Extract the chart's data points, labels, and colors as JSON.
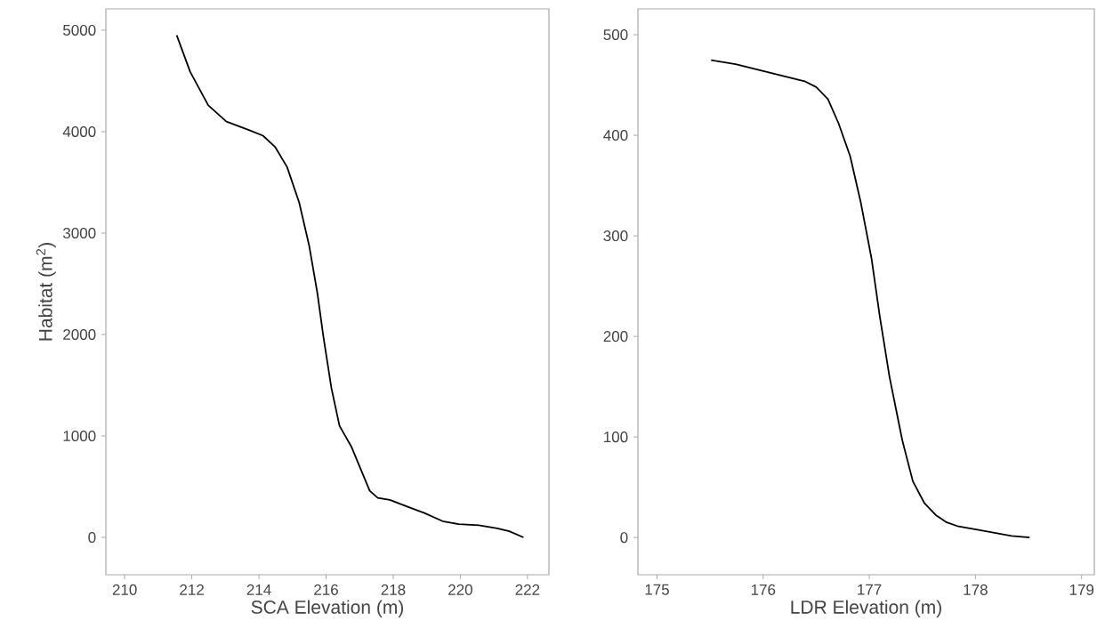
{
  "chart_data": [
    {
      "type": "line",
      "xlabel": "SCA Elevation (m)",
      "ylabel": "Habitat (m$^{2}$)",
      "xlim": [
        209.44,
        222.64
      ],
      "ylim": [
        -368,
        5210
      ],
      "xticks": [
        210,
        212,
        214,
        216,
        218,
        220,
        222
      ],
      "yticks": [
        0,
        1000,
        2000,
        3000,
        4000,
        5000
      ],
      "line_style": "solid",
      "series": [
        {
          "color": "#000000",
          "x": [
            211.55,
            211.95,
            212.49,
            213.03,
            213.75,
            214.12,
            214.48,
            214.84,
            215.2,
            215.5,
            215.74,
            215.92,
            216.16,
            216.4,
            216.76,
            217.06,
            217.3,
            217.54,
            217.9,
            218.45,
            218.93,
            219.47,
            219.95,
            220.55,
            221.1,
            221.46,
            221.88
          ],
          "values": [
            4950,
            4590,
            4260,
            4100,
            4010,
            3960,
            3850,
            3650,
            3300,
            2870,
            2410,
            1980,
            1470,
            1100,
            890,
            650,
            460,
            390,
            370,
            300,
            240,
            160,
            130,
            120,
            90,
            60,
            0
          ]
        }
      ]
    },
    {
      "type": "line",
      "xlabel": "LDR Elevation (m)",
      "xlim": [
        174.82,
        179.12
      ],
      "ylim": [
        -37,
        525.7
      ],
      "xticks": [
        175,
        176,
        177,
        178,
        179
      ],
      "yticks": [
        0,
        100,
        200,
        300,
        400,
        500
      ],
      "line_style": "solid",
      "series": [
        {
          "color": "#000000",
          "x": [
            175.51,
            175.74,
            176.01,
            176.39,
            176.5,
            176.61,
            176.71,
            176.82,
            176.92,
            177.02,
            177.1,
            177.19,
            177.31,
            177.41,
            177.52,
            177.63,
            177.73,
            177.84,
            178.03,
            178.34,
            178.51
          ],
          "values": [
            474.7,
            470.8,
            463.7,
            453.8,
            447.9,
            436,
            412,
            379,
            333,
            278,
            219,
            160,
            97,
            56,
            34,
            22,
            15,
            11,
            7.5,
            1.6,
            0
          ]
        }
      ]
    }
  ]
}
